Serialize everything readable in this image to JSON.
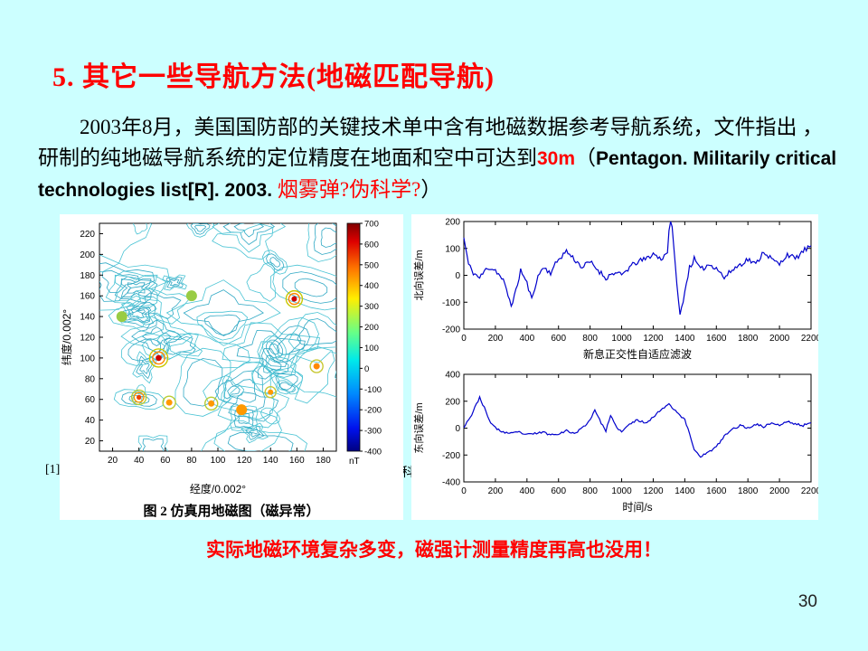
{
  "slide": {
    "title": "5. 其它一些导航方法(地磁匹配导航)",
    "paragraph": {
      "seg1": "2003年8月，美国国防部的关键技术单中含有地磁数据参考导航系统，文件指出 ，研制的纯地磁导航系统的定位精度在地面和空中可达到",
      "seg2": "30m",
      "seg3": "（",
      "seg4": "Pentagon. Militarily critical technologies list[R]. 2003. ",
      "seg5": "烟雾弹?伪科学?",
      "seg6": "）"
    },
    "ref_left": "[1]",
    "ref_mid": "科",
    "bottom_note": "实际地磁环境复杂多变，磁强计测量精度再高也没用！",
    "page_number": "30"
  },
  "chart_data": [
    {
      "id": "simulated_geomagnetic_map",
      "type": "heatmap",
      "title": "图 2  仿真用地磁图（磁异常）",
      "xlabel": "经度/0.002°",
      "ylabel": "纬度/0.002°",
      "xlim": [
        10,
        190
      ],
      "ylim": [
        10,
        230
      ],
      "xticks": [
        20,
        40,
        60,
        80,
        100,
        120,
        140,
        160,
        180
      ],
      "yticks": [
        20,
        40,
        60,
        80,
        100,
        120,
        140,
        160,
        180,
        200,
        220
      ],
      "colorbar": {
        "unit": "nT",
        "min": -400,
        "max": 700,
        "ticks": [
          700,
          600,
          500,
          400,
          300,
          200,
          100,
          0,
          -100,
          -200,
          -300,
          -400
        ]
      },
      "contour_color": "#49c3d4",
      "seed": 7,
      "hotspots": [
        {
          "x": 55,
          "y": 100,
          "r": 10,
          "colors": [
            "#c8c800",
            "#ff8800",
            "#cc0000"
          ]
        },
        {
          "x": 158,
          "y": 157,
          "r": 9,
          "colors": [
            "#c8c800",
            "#ff8800",
            "#cc0000"
          ]
        },
        {
          "x": 40,
          "y": 62,
          "r": 8,
          "colors": [
            "#b8cc33",
            "#ff9900",
            "#ee4400"
          ]
        },
        {
          "x": 63,
          "y": 57,
          "r": 7,
          "colors": [
            "#b8cc33",
            "#ff9900"
          ]
        },
        {
          "x": 95,
          "y": 56,
          "r": 7,
          "colors": [
            "#b8cc33",
            "#ff9900"
          ]
        },
        {
          "x": 118,
          "y": 50,
          "r": 6,
          "colors": [
            "#ff9900"
          ]
        },
        {
          "x": 140,
          "y": 67,
          "r": 6,
          "colors": [
            "#c8c833",
            "#ff9900"
          ]
        },
        {
          "x": 27,
          "y": 140,
          "r": 6,
          "colors": [
            "#99cc44"
          ]
        },
        {
          "x": 175,
          "y": 92,
          "r": 7,
          "colors": [
            "#c8c833",
            "#ff8800"
          ]
        },
        {
          "x": 80,
          "y": 160,
          "r": 6,
          "colors": [
            "#99cc44"
          ]
        }
      ]
    },
    {
      "id": "north_error",
      "type": "line",
      "ylabel": "北向误差/m",
      "xlabel": "新息正交性自适应滤波",
      "xlim": [
        0,
        2200
      ],
      "ylim": [
        -200,
        200
      ],
      "xticks": [
        0,
        200,
        400,
        600,
        800,
        1000,
        1200,
        1400,
        1600,
        1800,
        2000,
        2200
      ],
      "yticks": [
        200,
        100,
        0,
        -100,
        -200
      ],
      "color": "#0000cc",
      "noise": 10,
      "points": [
        [
          0,
          140
        ],
        [
          30,
          40
        ],
        [
          60,
          10
        ],
        [
          100,
          -10
        ],
        [
          150,
          30
        ],
        [
          200,
          20
        ],
        [
          250,
          -20
        ],
        [
          300,
          -110
        ],
        [
          330,
          -60
        ],
        [
          360,
          20
        ],
        [
          400,
          -30
        ],
        [
          430,
          -90
        ],
        [
          460,
          -20
        ],
        [
          500,
          30
        ],
        [
          550,
          10
        ],
        [
          600,
          60
        ],
        [
          650,
          90
        ],
        [
          700,
          60
        ],
        [
          750,
          30
        ],
        [
          800,
          50
        ],
        [
          850,
          20
        ],
        [
          900,
          -10
        ],
        [
          950,
          10
        ],
        [
          1000,
          0
        ],
        [
          1050,
          30
        ],
        [
          1100,
          50
        ],
        [
          1150,
          60
        ],
        [
          1200,
          80
        ],
        [
          1250,
          60
        ],
        [
          1290,
          90
        ],
        [
          1310,
          230
        ],
        [
          1330,
          120
        ],
        [
          1350,
          -40
        ],
        [
          1370,
          -150
        ],
        [
          1400,
          -60
        ],
        [
          1430,
          30
        ],
        [
          1460,
          60
        ],
        [
          1500,
          20
        ],
        [
          1550,
          40
        ],
        [
          1600,
          30
        ],
        [
          1650,
          -10
        ],
        [
          1700,
          20
        ],
        [
          1750,
          40
        ],
        [
          1800,
          60
        ],
        [
          1850,
          40
        ],
        [
          1900,
          90
        ],
        [
          1950,
          60
        ],
        [
          2000,
          40
        ],
        [
          2050,
          80
        ],
        [
          2100,
          60
        ],
        [
          2150,
          90
        ],
        [
          2200,
          110
        ]
      ]
    },
    {
      "id": "east_error",
      "type": "line",
      "ylabel": "东向误差/m",
      "xlabel": "时间/s",
      "xlim": [
        0,
        2200
      ],
      "ylim": [
        -400,
        400
      ],
      "xticks": [
        0,
        200,
        400,
        600,
        800,
        1000,
        1200,
        1400,
        1600,
        1800,
        2000,
        2200
      ],
      "yticks": [
        400,
        200,
        0,
        -200,
        -400
      ],
      "color": "#0000cc",
      "noise": 8,
      "points": [
        [
          0,
          10
        ],
        [
          50,
          100
        ],
        [
          100,
          230
        ],
        [
          130,
          150
        ],
        [
          160,
          60
        ],
        [
          200,
          0
        ],
        [
          250,
          -30
        ],
        [
          300,
          -40
        ],
        [
          350,
          -30
        ],
        [
          400,
          -50
        ],
        [
          450,
          -40
        ],
        [
          500,
          -30
        ],
        [
          550,
          -50
        ],
        [
          600,
          -40
        ],
        [
          650,
          -20
        ],
        [
          700,
          -40
        ],
        [
          750,
          0
        ],
        [
          800,
          60
        ],
        [
          830,
          140
        ],
        [
          860,
          60
        ],
        [
          900,
          -20
        ],
        [
          930,
          90
        ],
        [
          960,
          20
        ],
        [
          1000,
          -30
        ],
        [
          1050,
          30
        ],
        [
          1100,
          60
        ],
        [
          1150,
          40
        ],
        [
          1200,
          80
        ],
        [
          1250,
          140
        ],
        [
          1300,
          180
        ],
        [
          1350,
          120
        ],
        [
          1400,
          60
        ],
        [
          1430,
          -40
        ],
        [
          1460,
          -160
        ],
        [
          1500,
          -210
        ],
        [
          1550,
          -180
        ],
        [
          1600,
          -140
        ],
        [
          1650,
          -60
        ],
        [
          1700,
          -10
        ],
        [
          1750,
          20
        ],
        [
          1800,
          0
        ],
        [
          1850,
          30
        ],
        [
          1900,
          10
        ],
        [
          1950,
          40
        ],
        [
          2000,
          20
        ],
        [
          2050,
          50
        ],
        [
          2100,
          30
        ],
        [
          2150,
          20
        ],
        [
          2200,
          40
        ]
      ]
    }
  ]
}
